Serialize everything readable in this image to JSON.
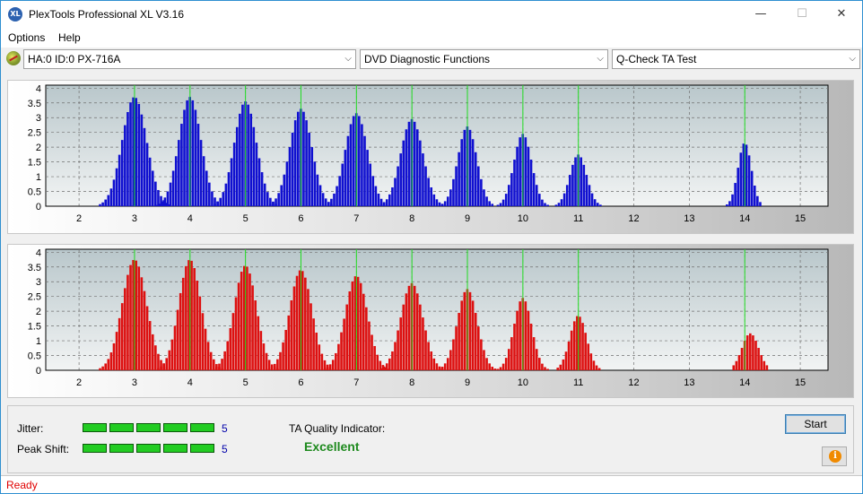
{
  "window": {
    "title": "PlexTools Professional XL V3.16",
    "app_icon_text": "XL",
    "minimize_glyph": "—",
    "maximize_glyph": "☐",
    "close_glyph": "✕"
  },
  "menu": {
    "items": [
      {
        "label": "Options"
      },
      {
        "label": "Help"
      }
    ]
  },
  "toolbar": {
    "drive_select": "HA:0 ID:0  PX-716A",
    "function_select": "DVD Diagnostic Functions",
    "test_select": "Q-Check TA Test",
    "dropdown_glyph": "⌵"
  },
  "chart_data": [
    {
      "type": "bar",
      "series": [
        {
          "name": "",
          "color": "#1010d0"
        }
      ],
      "x_ticks": [
        2,
        3,
        4,
        5,
        6,
        7,
        8,
        9,
        10,
        11,
        12,
        13,
        14,
        15
      ],
      "y_ticks": [
        0,
        0.5,
        1,
        1.5,
        2,
        2.5,
        3,
        3.5,
        4
      ],
      "y_tick_labels": [
        "0",
        "0.5",
        "1",
        "1.5",
        "2",
        "2.5",
        "3",
        "3.5",
        "4"
      ],
      "xlim": [
        1.4,
        15.5
      ],
      "ylim": [
        0,
        4.1
      ],
      "grid": true,
      "marker_lines_x": [
        3,
        4,
        5,
        6,
        7,
        8,
        9,
        10,
        11,
        14
      ],
      "marker_line_color": "#22dd22",
      "peaks": [
        {
          "center": 3,
          "height": 3.7,
          "sigma": 0.22,
          "span": 0.72
        },
        {
          "center": 4,
          "height": 3.7,
          "sigma": 0.2,
          "span": 0.6
        },
        {
          "center": 5,
          "height": 3.55,
          "sigma": 0.2,
          "span": 0.6
        },
        {
          "center": 6,
          "height": 3.3,
          "sigma": 0.2,
          "span": 0.6
        },
        {
          "center": 7,
          "height": 3.15,
          "sigma": 0.2,
          "span": 0.6
        },
        {
          "center": 8,
          "height": 2.95,
          "sigma": 0.2,
          "span": 0.6
        },
        {
          "center": 9,
          "height": 2.7,
          "sigma": 0.17,
          "span": 0.5
        },
        {
          "center": 10,
          "height": 2.45,
          "sigma": 0.16,
          "span": 0.45
        },
        {
          "center": 11,
          "height": 1.75,
          "sigma": 0.15,
          "span": 0.45
        },
        {
          "center": 14,
          "height": 2.15,
          "sigma": 0.12,
          "span": 0.32
        }
      ]
    },
    {
      "type": "bar",
      "series": [
        {
          "name": "",
          "color": "#dd1010"
        }
      ],
      "x_ticks": [
        2,
        3,
        4,
        5,
        6,
        7,
        8,
        9,
        10,
        11,
        12,
        13,
        14,
        15
      ],
      "y_ticks": [
        0,
        0.5,
        1,
        1.5,
        2,
        2.5,
        3,
        3.5,
        4
      ],
      "y_tick_labels": [
        "0",
        "0.5",
        "1",
        "1.5",
        "2",
        "2.5",
        "3",
        "3.5",
        "4"
      ],
      "xlim": [
        1.4,
        15.5
      ],
      "ylim": [
        0,
        4.1
      ],
      "grid": true,
      "marker_lines_x": [
        3,
        4,
        5,
        6,
        7,
        8,
        9,
        10,
        11,
        14
      ],
      "marker_line_color": "#22dd22",
      "peaks": [
        {
          "center": 3,
          "height": 3.75,
          "sigma": 0.22,
          "span": 0.72
        },
        {
          "center": 4,
          "height": 3.75,
          "sigma": 0.2,
          "span": 0.62
        },
        {
          "center": 5,
          "height": 3.55,
          "sigma": 0.2,
          "span": 0.62
        },
        {
          "center": 6,
          "height": 3.4,
          "sigma": 0.2,
          "span": 0.62
        },
        {
          "center": 7,
          "height": 3.2,
          "sigma": 0.2,
          "span": 0.62
        },
        {
          "center": 8,
          "height": 2.95,
          "sigma": 0.2,
          "span": 0.6
        },
        {
          "center": 9,
          "height": 2.75,
          "sigma": 0.18,
          "span": 0.5
        },
        {
          "center": 10,
          "height": 2.45,
          "sigma": 0.16,
          "span": 0.45
        },
        {
          "center": 11,
          "height": 1.85,
          "sigma": 0.15,
          "span": 0.42
        },
        {
          "center": 14.1,
          "height": 1.25,
          "sigma": 0.15,
          "span": 0.3
        }
      ]
    }
  ],
  "results": {
    "jitter_label": "Jitter:",
    "jitter_value": "5",
    "jitter_level": 5,
    "peak_shift_label": "Peak Shift:",
    "peak_shift_value": "5",
    "peak_shift_level": 5,
    "ta_quality_label": "TA Quality Indicator:",
    "ta_quality_value": "Excellent"
  },
  "buttons": {
    "start_label": "Start",
    "info_glyph": "i"
  },
  "status": {
    "text": "Ready"
  }
}
